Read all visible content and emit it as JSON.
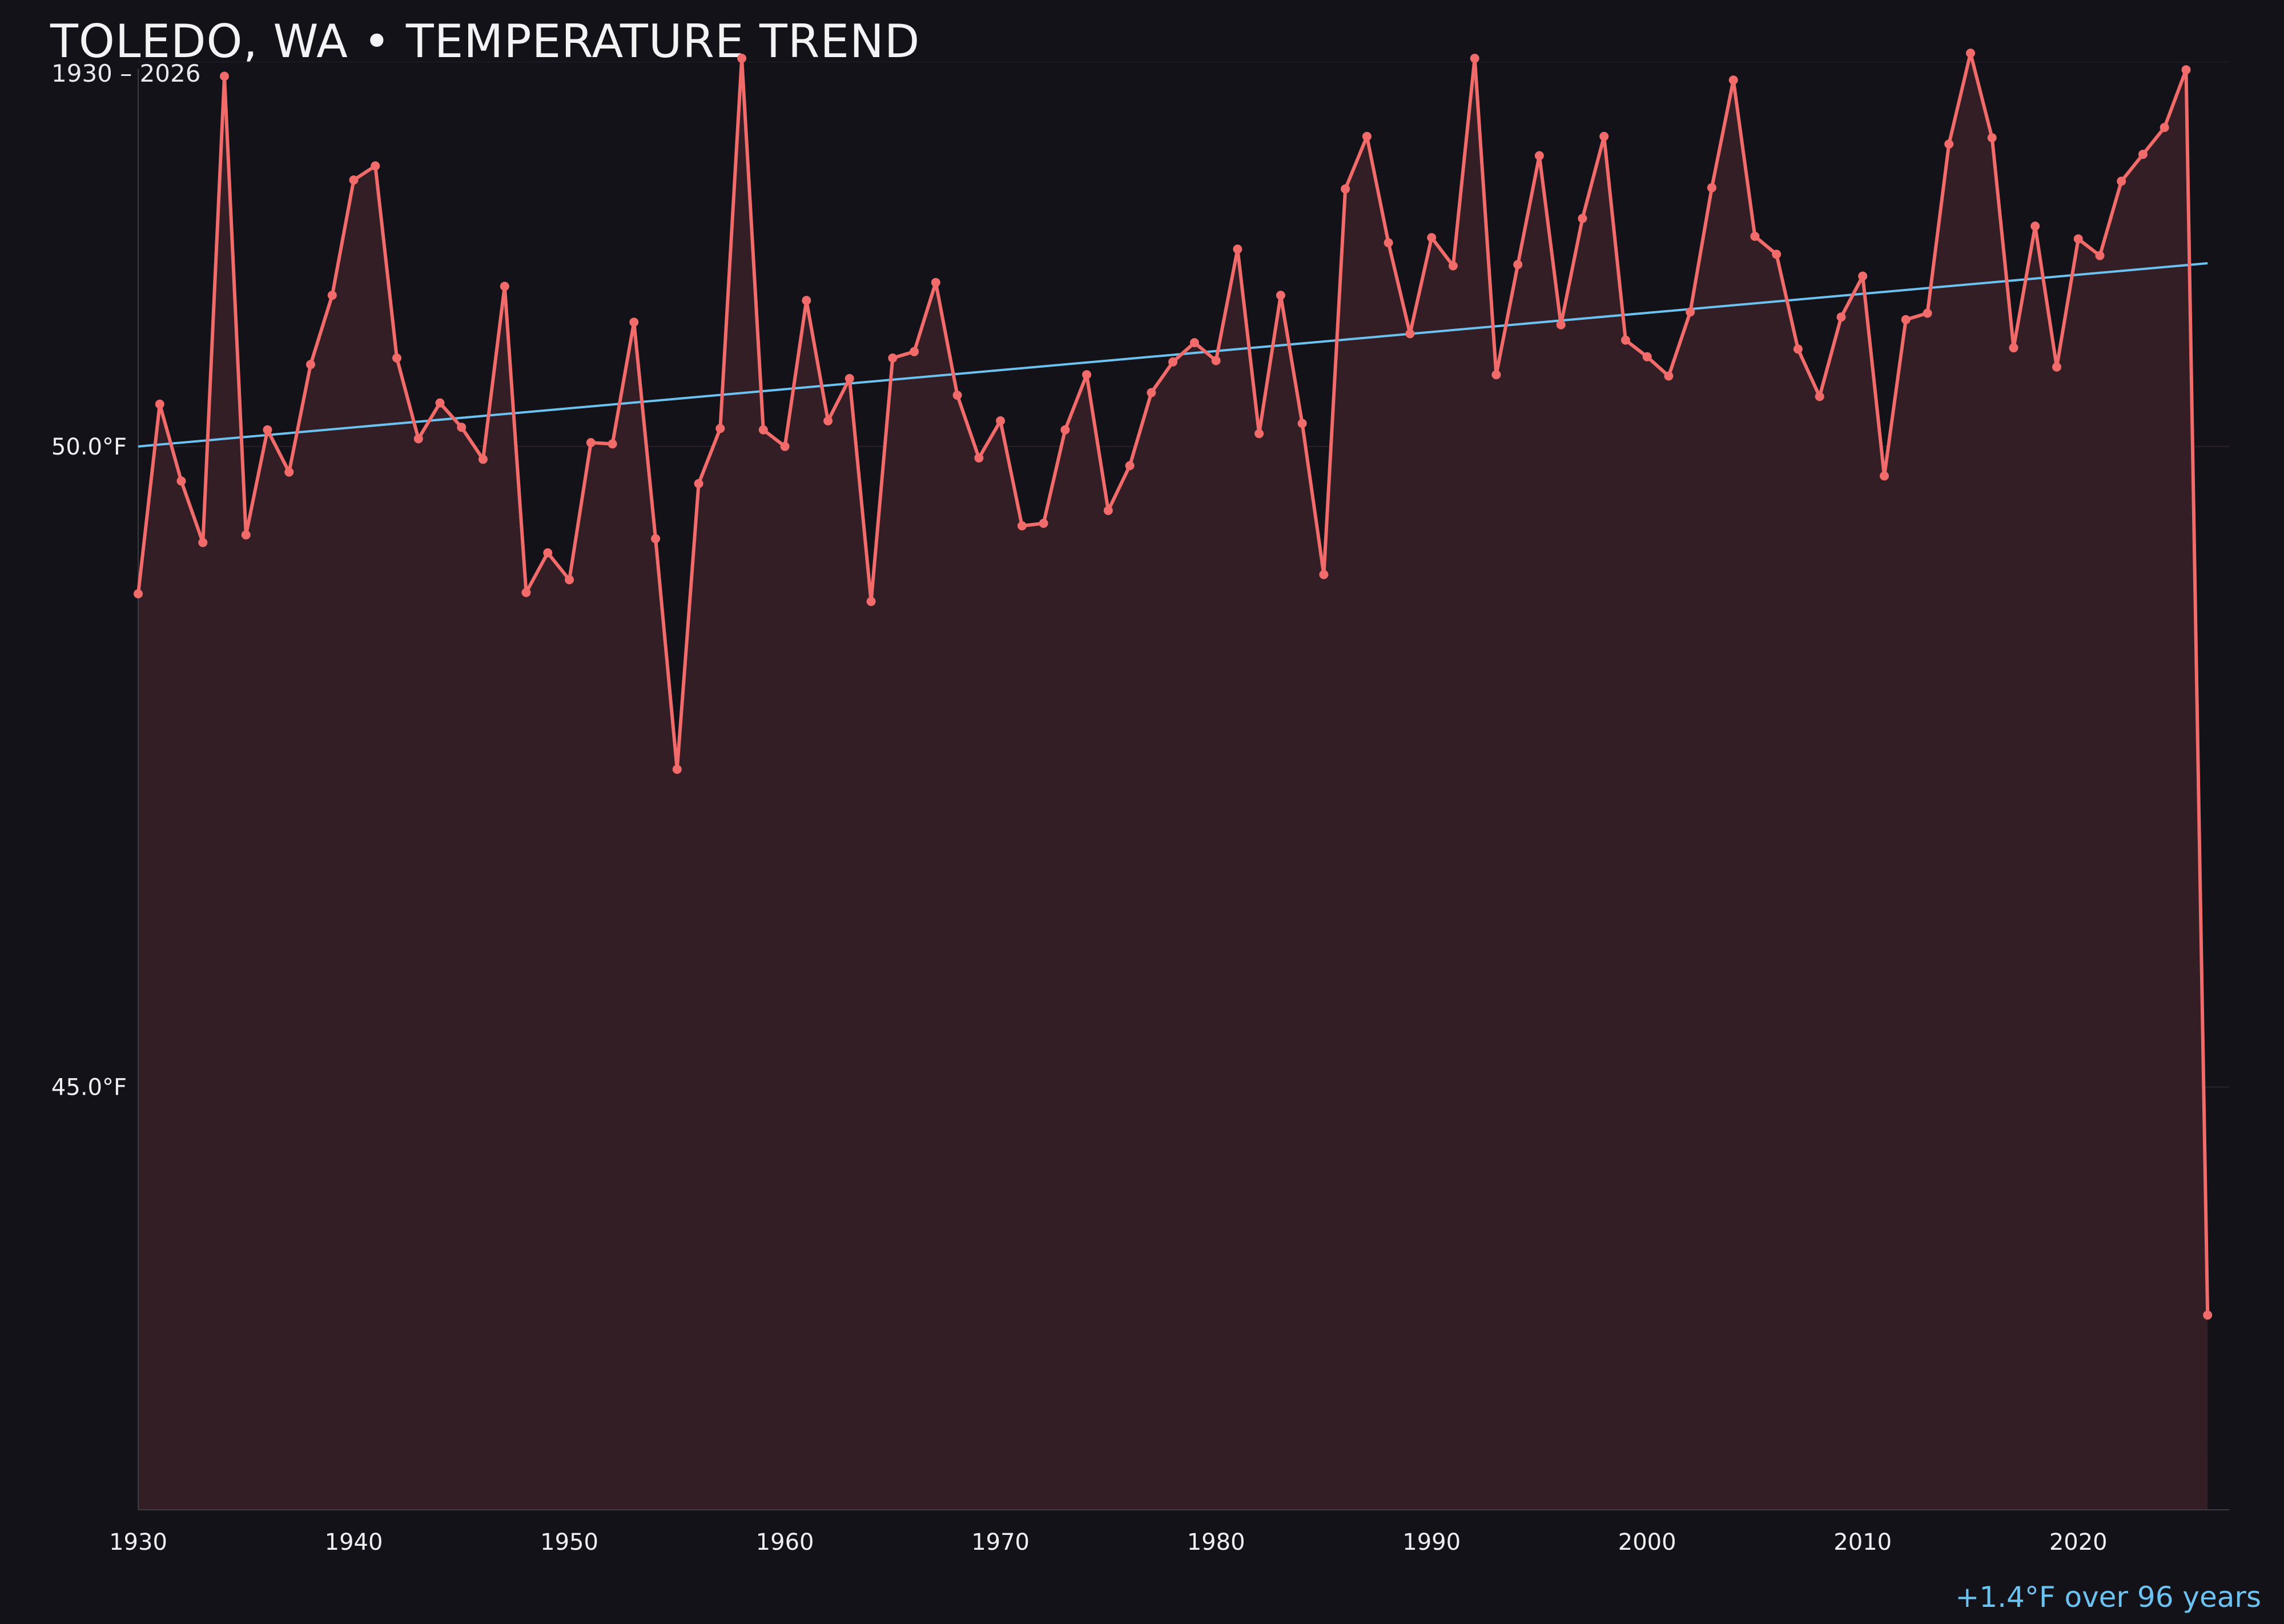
{
  "chart_data": {
    "type": "line",
    "title": "TOLEDO, WA • TEMPERATURE TREND",
    "subtitle": "1930 – 2026",
    "annotation": "+1.4°F over 96 years",
    "x_ticks": [
      1930,
      1940,
      1950,
      1960,
      1970,
      1980,
      1990,
      2000,
      2010,
      2020
    ],
    "y_ticks": [
      {
        "value": 45.0,
        "label": "45.0°F"
      },
      {
        "value": 50.0,
        "label": "50.0°F"
      }
    ],
    "xlim": [
      1930,
      2027
    ],
    "ylim": [
      41.7,
      52.95
    ],
    "grid": "horizontal",
    "colors": {
      "background": "#131218",
      "series": "#f26b6b",
      "area_fill": "#341e25",
      "trend": "#6cc2f0",
      "grid": "#2a2229",
      "axis": "#3a3a42"
    },
    "series": [
      {
        "type": "line-area",
        "x": [
          1930,
          1931,
          1932,
          1933,
          1934,
          1935,
          1936,
          1937,
          1938,
          1939,
          1940,
          1941,
          1942,
          1943,
          1944,
          1945,
          1946,
          1947,
          1948,
          1949,
          1950,
          1951,
          1952,
          1953,
          1954,
          1955,
          1956,
          1957,
          1958,
          1959,
          1960,
          1961,
          1962,
          1963,
          1964,
          1965,
          1966,
          1967,
          1968,
          1969,
          1970,
          1971,
          1972,
          1973,
          1974,
          1975,
          1976,
          1977,
          1978,
          1979,
          1980,
          1981,
          1982,
          1983,
          1984,
          1985,
          1986,
          1987,
          1988,
          1989,
          1990,
          1991,
          1992,
          1993,
          1994,
          1995,
          1996,
          1997,
          1998,
          1999,
          2000,
          2001,
          2002,
          2003,
          2004,
          2005,
          2006,
          2007,
          2008,
          2009,
          2010,
          2011,
          2012,
          2013,
          2014,
          2015,
          2016,
          2017,
          2018,
          2019,
          2020,
          2021,
          2022,
          2023,
          2024,
          2025,
          2026
        ],
        "values": [
          48.85,
          50.33,
          49.73,
          49.25,
          52.89,
          49.31,
          50.13,
          49.8,
          50.64,
          51.18,
          52.08,
          52.19,
          50.69,
          50.06,
          50.34,
          50.15,
          49.9,
          51.25,
          48.86,
          49.17,
          48.96,
          50.03,
          50.02,
          50.97,
          49.28,
          47.48,
          49.71,
          50.14,
          53.03,
          50.13,
          50.0,
          51.14,
          50.2,
          50.53,
          48.79,
          50.69,
          50.74,
          51.28,
          50.4,
          49.91,
          50.2,
          49.38,
          49.4,
          50.13,
          50.56,
          49.5,
          49.85,
          50.42,
          50.66,
          50.81,
          50.67,
          51.54,
          50.1,
          51.18,
          50.18,
          49.0,
          52.01,
          52.42,
          51.59,
          50.88,
          51.63,
          51.41,
          53.03,
          50.56,
          51.42,
          52.27,
          50.95,
          51.78,
          52.42,
          50.83,
          50.7,
          50.55,
          51.05,
          52.02,
          52.86,
          51.64,
          51.5,
          50.76,
          50.39,
          51.01,
          51.33,
          49.77,
          50.99,
          51.04,
          52.36,
          53.07,
          52.41,
          50.77,
          51.72,
          50.62,
          51.62,
          51.49,
          52.07,
          52.28,
          52.49,
          52.94,
          43.22
        ]
      },
      {
        "type": "trend",
        "x": [
          1930,
          2026
        ],
        "values": [
          50.0,
          51.43
        ]
      }
    ]
  }
}
